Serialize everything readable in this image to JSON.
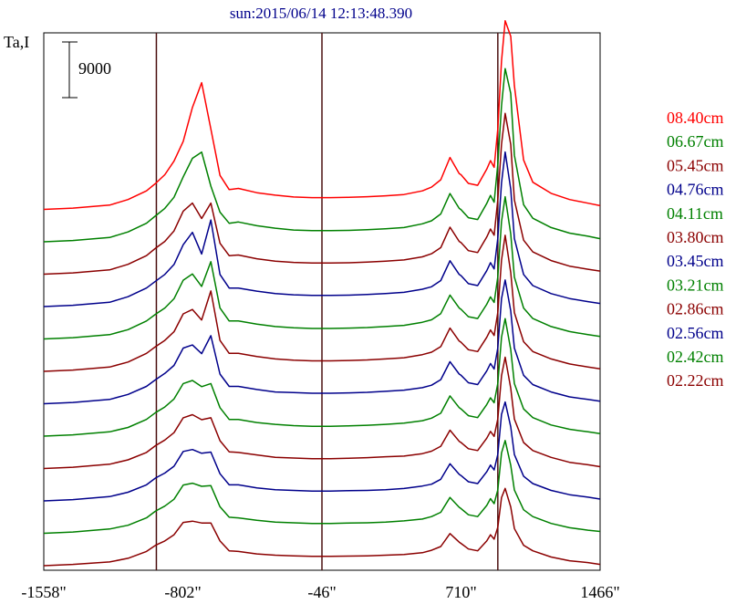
{
  "chart_data": {
    "type": "line",
    "title": "sun:2015/06/14 12:13:48.390",
    "ylabel": "Ta,I",
    "scale_bar_label": "9000",
    "x_ticks": [
      "-1558\"",
      "-802\"",
      "-46\"",
      "710\"",
      "1466\""
    ],
    "xlim": [
      -1558,
      1466
    ],
    "vertical_lines_x": [
      -946,
      -46,
      910
    ],
    "grid": false,
    "legend_position": "right",
    "profile": {
      "x": [
        -1558,
        -1400,
        -1200,
        -1100,
        -1000,
        -950,
        -900,
        -850,
        -800,
        -750,
        -700,
        -650,
        -600,
        -550,
        -500,
        -400,
        -300,
        -200,
        -100,
        -46,
        0,
        100,
        200,
        300,
        400,
        500,
        550,
        600,
        650,
        700,
        710,
        750,
        800,
        850,
        870,
        890,
        910,
        930,
        950,
        980,
        1000,
        1050,
        1100,
        1200,
        1300,
        1400,
        1466
      ],
      "values_per_series_offset_note": "",
      "peak_a_center": -650
    },
    "series": [
      {
        "name": "08.40cm",
        "color": "#ff0000",
        "offset": 11,
        "values": [
          0,
          200,
          700,
          1600,
          3000,
          4200,
          5600,
          7800,
          11000,
          16500,
          20500,
          13000,
          5500,
          3200,
          3400,
          2700,
          2300,
          2000,
          1900,
          1900,
          1900,
          1950,
          2050,
          2200,
          2400,
          3000,
          3600,
          4800,
          8400,
          5800,
          5600,
          4200,
          3900,
          6500,
          7900,
          6800,
          13000,
          24000,
          30500,
          28000,
          20000,
          8000,
          4400,
          2600,
          1600,
          1000,
          600
        ]
      },
      {
        "name": "06.67cm",
        "color": "#008000",
        "offset": 10,
        "values": [
          0,
          200,
          700,
          1600,
          3000,
          4200,
          5400,
          7200,
          10500,
          13500,
          14500,
          9000,
          4800,
          3000,
          3200,
          2600,
          2200,
          1900,
          1800,
          1800,
          1800,
          1850,
          1950,
          2100,
          2300,
          2900,
          3400,
          4500,
          7800,
          5400,
          5200,
          3900,
          3600,
          6200,
          7500,
          6400,
          12500,
          22000,
          28000,
          24000,
          14000,
          6000,
          3800,
          2300,
          1400,
          900,
          500
        ]
      },
      {
        "name": "05.45cm",
        "color": "#8b0000",
        "offset": 9,
        "values": [
          0,
          200,
          700,
          1600,
          3000,
          4200,
          5300,
          7000,
          10200,
          11500,
          9000,
          11500,
          5000,
          3000,
          3100,
          2500,
          2100,
          1900,
          1800,
          1800,
          1800,
          1850,
          1950,
          2100,
          2300,
          2800,
          3300,
          4300,
          7600,
          5300,
          5100,
          3800,
          3500,
          6000,
          7300,
          6300,
          12000,
          21000,
          26000,
          21000,
          12000,
          5500,
          3600,
          2200,
          1300,
          800,
          500
        ]
      },
      {
        "name": "04.76cm",
        "color": "#00008b",
        "offset": 8,
        "values": [
          0,
          200,
          700,
          1600,
          3000,
          4100,
          5200,
          6800,
          10000,
          12000,
          8500,
          14000,
          5200,
          3000,
          3000,
          2500,
          2100,
          1900,
          1800,
          1800,
          1800,
          1850,
          1950,
          2100,
          2300,
          2800,
          3200,
          4200,
          7400,
          5200,
          5000,
          3700,
          3400,
          5800,
          7100,
          6100,
          11000,
          20000,
          25000,
          19000,
          11000,
          5200,
          3400,
          2100,
          1300,
          800,
          500
        ]
      },
      {
        "name": "04.11cm",
        "color": "#008000",
        "offset": 7,
        "values": [
          0,
          200,
          700,
          1500,
          2900,
          4000,
          5000,
          6500,
          9500,
          10500,
          8500,
          12500,
          5000,
          2900,
          2900,
          2400,
          2000,
          1800,
          1700,
          1700,
          1700,
          1750,
          1850,
          2000,
          2200,
          2700,
          3100,
          4100,
          7100,
          5000,
          4800,
          3600,
          3300,
          5600,
          6800,
          5900,
          10000,
          19000,
          23000,
          17000,
          10000,
          5000,
          3300,
          2000,
          1200,
          700,
          400
        ]
      },
      {
        "name": "03.80cm",
        "color": "#8b0000",
        "offset": 6,
        "values": [
          0,
          200,
          700,
          1500,
          2900,
          4000,
          5000,
          6400,
          9300,
          10000,
          8300,
          13000,
          5000,
          2900,
          2900,
          2400,
          2000,
          1800,
          1700,
          1700,
          1700,
          1750,
          1850,
          2000,
          2200,
          2700,
          3100,
          4000,
          7000,
          4900,
          4700,
          3500,
          3200,
          5500,
          6700,
          5800,
          9500,
          18000,
          22000,
          16000,
          9500,
          4800,
          3200,
          2000,
          1200,
          700,
          400
        ]
      },
      {
        "name": "03.45cm",
        "color": "#00008b",
        "offset": 5,
        "values": [
          0,
          200,
          700,
          1500,
          2800,
          3900,
          4900,
          6200,
          9000,
          9500,
          8100,
          11000,
          4800,
          2800,
          2800,
          2300,
          1900,
          1800,
          1700,
          1700,
          1700,
          1750,
          1850,
          2000,
          2200,
          2600,
          3000,
          3900,
          6800,
          4800,
          4600,
          3400,
          3100,
          5300,
          6500,
          5600,
          9000,
          17000,
          20000,
          15000,
          9000,
          4600,
          3100,
          1900,
          1100,
          700,
          400
        ]
      },
      {
        "name": "03.21cm",
        "color": "#008000",
        "offset": 4,
        "values": [
          0,
          200,
          700,
          1400,
          2700,
          3800,
          4700,
          6000,
          8500,
          9000,
          8000,
          8500,
          4600,
          2700,
          2700,
          2200,
          1900,
          1700,
          1600,
          1600,
          1600,
          1650,
          1750,
          1900,
          2100,
          2500,
          2900,
          3700,
          6500,
          4600,
          4400,
          3300,
          3000,
          5100,
          6200,
          5400,
          8500,
          16000,
          19000,
          14000,
          8500,
          4400,
          3000,
          1800,
          1100,
          700,
          400
        ]
      },
      {
        "name": "02.86cm",
        "color": "#8b0000",
        "offset": 3,
        "values": [
          0,
          200,
          700,
          1400,
          2600,
          3700,
          4600,
          5800,
          8200,
          8700,
          7900,
          8200,
          4500,
          2700,
          2600,
          2200,
          1800,
          1700,
          1600,
          1600,
          1600,
          1650,
          1750,
          1900,
          2000,
          2400,
          2800,
          3600,
          6200,
          4400,
          4200,
          3200,
          2900,
          4900,
          6000,
          5200,
          8000,
          15000,
          18000,
          13000,
          8000,
          4200,
          2900,
          1800,
          1000,
          600,
          300
        ]
      },
      {
        "name": "02.56cm",
        "color": "#00008b",
        "offset": 2,
        "values": [
          0,
          200,
          700,
          1400,
          2600,
          3700,
          4500,
          5600,
          8000,
          8300,
          7700,
          7900,
          4400,
          2600,
          2600,
          2100,
          1800,
          1700,
          1600,
          1600,
          1600,
          1650,
          1700,
          1800,
          2000,
          2400,
          2700,
          3500,
          6000,
          4300,
          4100,
          3100,
          2800,
          4700,
          5800,
          5000,
          7500,
          14000,
          16000,
          12000,
          7500,
          4000,
          2800,
          1700,
          1000,
          600,
          300
        ]
      },
      {
        "name": "02.42cm",
        "color": "#008000",
        "offset": 1,
        "values": [
          0,
          200,
          700,
          1300,
          2500,
          3600,
          4400,
          5500,
          7800,
          8100,
          7600,
          7700,
          4300,
          2600,
          2500,
          2100,
          1800,
          1700,
          1600,
          1600,
          1600,
          1650,
          1700,
          1800,
          2000,
          2300,
          2700,
          3400,
          5800,
          4200,
          4000,
          3000,
          2700,
          4500,
          5600,
          4800,
          7000,
          13000,
          15000,
          11000,
          7000,
          3800,
          2700,
          1600,
          900,
          500,
          300
        ]
      },
      {
        "name": "02.22cm",
        "color": "#8b0000",
        "offset": 0,
        "values": [
          0,
          200,
          600,
          1200,
          2300,
          3300,
          4000,
          5000,
          7000,
          7200,
          6900,
          6900,
          4000,
          2400,
          2300,
          1900,
          1700,
          1600,
          1500,
          1500,
          1500,
          1550,
          1600,
          1700,
          1800,
          2100,
          2500,
          3100,
          5200,
          3800,
          3600,
          2700,
          2400,
          4000,
          5000,
          4300,
          6200,
          11000,
          12500,
          9500,
          6000,
          3300,
          2400,
          1400,
          800,
          500,
          200
        ]
      }
    ]
  }
}
